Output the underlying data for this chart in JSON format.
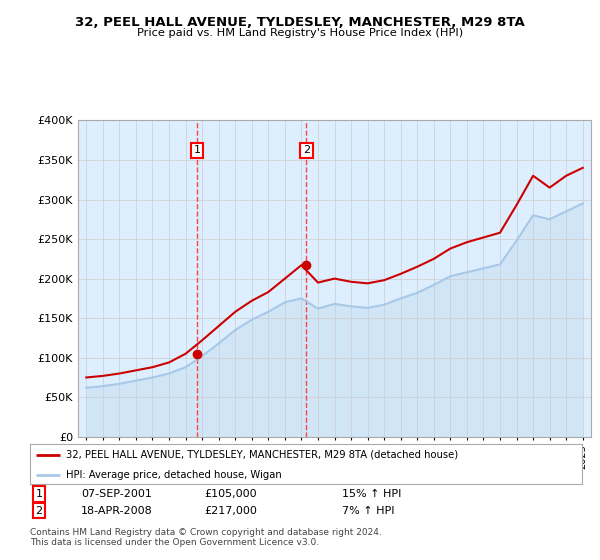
{
  "title": "32, PEEL HALL AVENUE, TYLDESLEY, MANCHESTER, M29 8TA",
  "subtitle": "Price paid vs. HM Land Registry's House Price Index (HPI)",
  "legend_line1": "32, PEEL HALL AVENUE, TYLDESLEY, MANCHESTER, M29 8TA (detached house)",
  "legend_line2": "HPI: Average price, detached house, Wigan",
  "sale1_date": "07-SEP-2001",
  "sale1_price": 105000,
  "sale1_hpi": "15% ↑ HPI",
  "sale2_date": "18-APR-2008",
  "sale2_price": 217000,
  "sale2_hpi": "7% ↑ HPI",
  "footnote": "Contains HM Land Registry data © Crown copyright and database right 2024.\nThis data is licensed under the Open Government Licence v3.0.",
  "hpi_color": "#a8c8e8",
  "hpi_fill_color": "#c8dff0",
  "price_color": "#cc0000",
  "dashed_line_color": "#ff4444",
  "background_color": "#ddeeff",
  "ylim": [
    0,
    400000
  ],
  "yticks": [
    0,
    50000,
    100000,
    150000,
    200000,
    250000,
    300000,
    350000,
    400000
  ],
  "sale1_x": 2001.7,
  "sale2_x": 2008.3,
  "years": [
    1995,
    1996,
    1997,
    1998,
    1999,
    2000,
    2001,
    2002,
    2003,
    2004,
    2005,
    2006,
    2007,
    2008,
    2009,
    2010,
    2011,
    2012,
    2013,
    2014,
    2015,
    2016,
    2017,
    2018,
    2019,
    2020,
    2021,
    2022,
    2023,
    2024,
    2025
  ],
  "hpi_values": [
    62000,
    64000,
    67000,
    71000,
    75000,
    80000,
    88000,
    102000,
    118000,
    135000,
    148000,
    158000,
    170000,
    175000,
    162000,
    168000,
    165000,
    163000,
    167000,
    175000,
    182000,
    192000,
    203000,
    208000,
    213000,
    218000,
    248000,
    280000,
    275000,
    285000,
    295000
  ],
  "prop_values": [
    75000,
    77000,
    80000,
    84000,
    88000,
    94000,
    105000,
    122000,
    140000,
    158000,
    172000,
    183000,
    200000,
    217000,
    195000,
    200000,
    196000,
    194000,
    198000,
    206000,
    215000,
    225000,
    238000,
    246000,
    252000,
    258000,
    293000,
    330000,
    315000,
    330000,
    340000
  ]
}
